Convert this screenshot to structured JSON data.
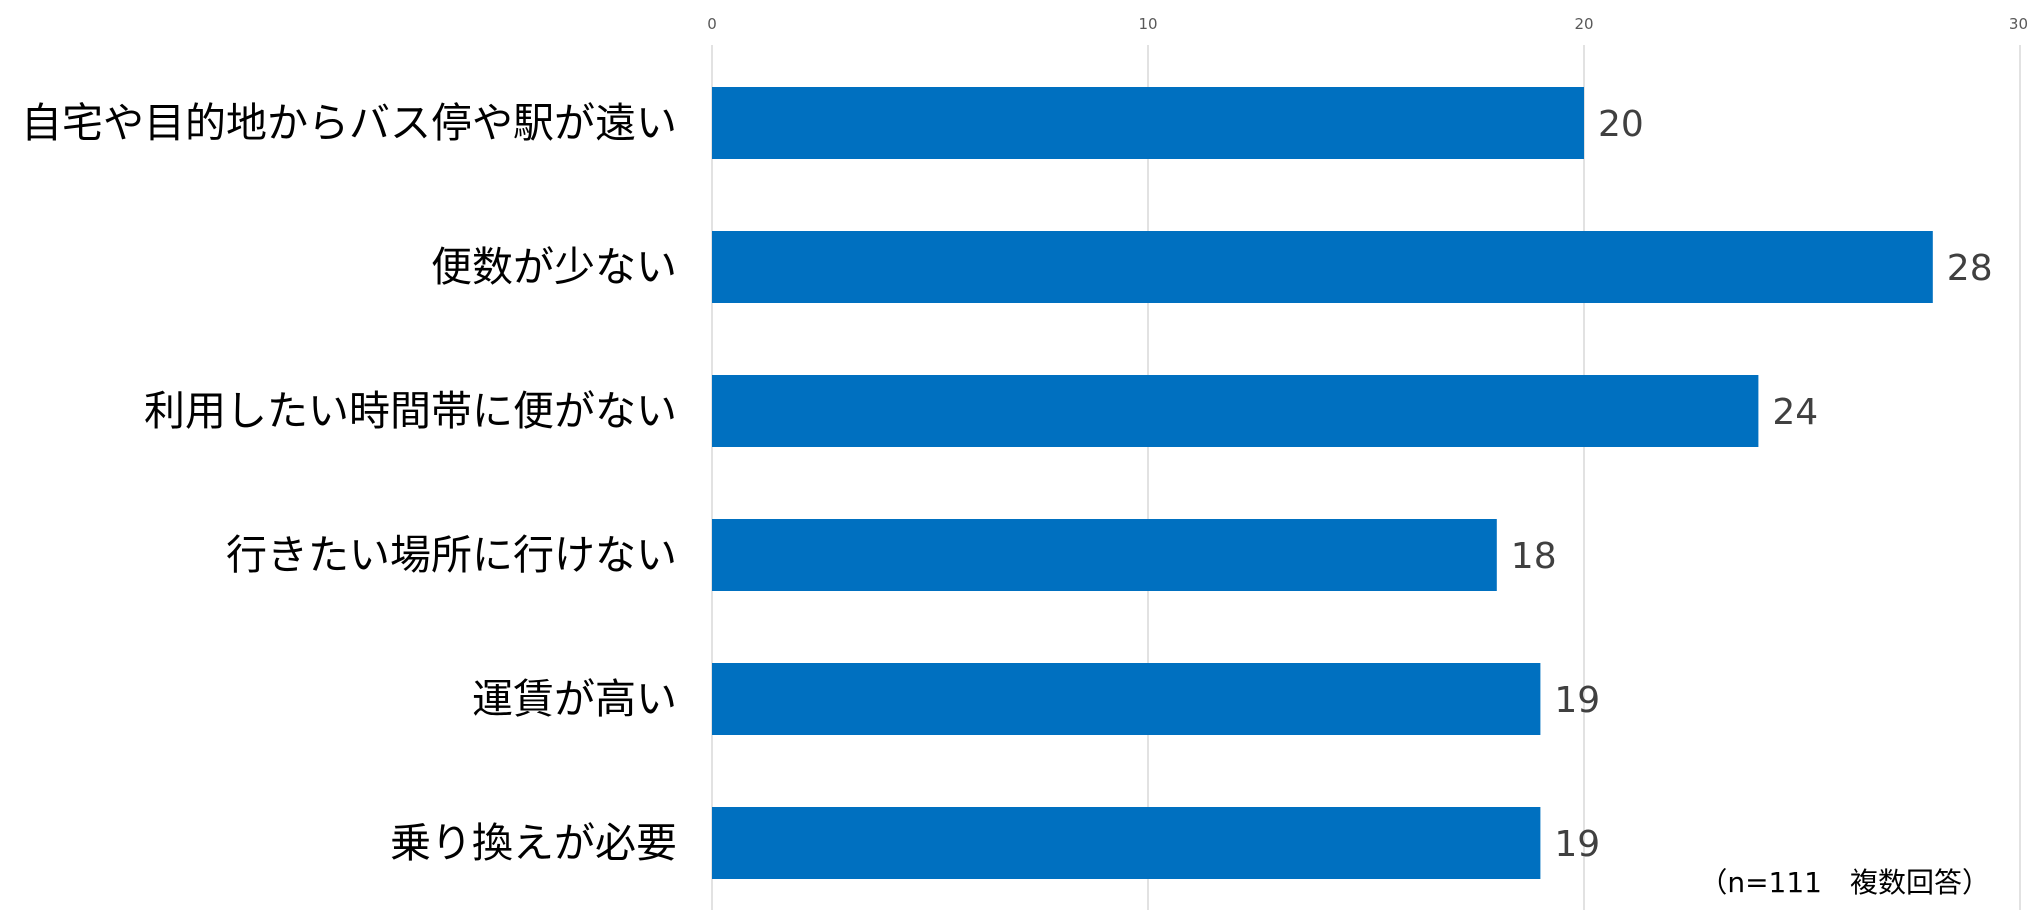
{
  "chart_data": {
    "type": "bar",
    "orientation": "horizontal",
    "categories": [
      "自宅や目的地からバス停や駅が遠い",
      "便数が少ない",
      "利用したい時間帯に便がない",
      "行きたい場所に行けない",
      "運賃が高い",
      "乗り換えが必要"
    ],
    "values": [
      20,
      28,
      24,
      18,
      19,
      19
    ],
    "xlim": [
      0,
      30
    ],
    "xticks": [
      0,
      10,
      20,
      30
    ],
    "x_axis_position": "top",
    "grid": true,
    "legend": "none",
    "title": "",
    "xlabel": "",
    "ylabel": "",
    "bar_color": "#0070C0",
    "note": "（n=111　複数回答）"
  }
}
